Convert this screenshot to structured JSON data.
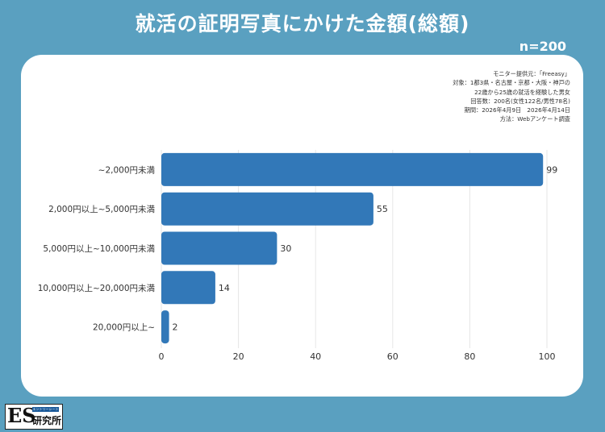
{
  "header": {
    "title": "就活の証明写真にかけた金額(総額)",
    "sample_size": "n=200"
  },
  "survey_info": [
    "モニター提供元：「Freeasy」",
    "対象：1都3県・名古屋・京都・大阪・神戸の",
    "22歳から25歳の就活を経験した男女",
    "回答数：200名(女性122名/男性78名)",
    "期間：2026年4月9日　2026年4月14日",
    "方法：Webアンケート調査"
  ],
  "chart_data": {
    "type": "bar",
    "orientation": "horizontal",
    "categories": [
      "~2,000円未満",
      "2,000円以上~5,000円未満",
      "5,000円以上~10,000円未満",
      "10,000円以上~20,000円未満",
      "20,000円以上~"
    ],
    "values": [
      99,
      55,
      30,
      14,
      2
    ],
    "xlim": [
      0,
      100
    ],
    "xticks": [
      0,
      20,
      40,
      60,
      80,
      100
    ],
    "grid": true,
    "bar_color": "#3278b8"
  },
  "logo": {
    "mark": "ES",
    "tagline": "エントリーシート",
    "name": "研究所"
  },
  "colors": {
    "background": "#5aa0c0",
    "card": "#ffffff",
    "bar": "#3278b8"
  }
}
